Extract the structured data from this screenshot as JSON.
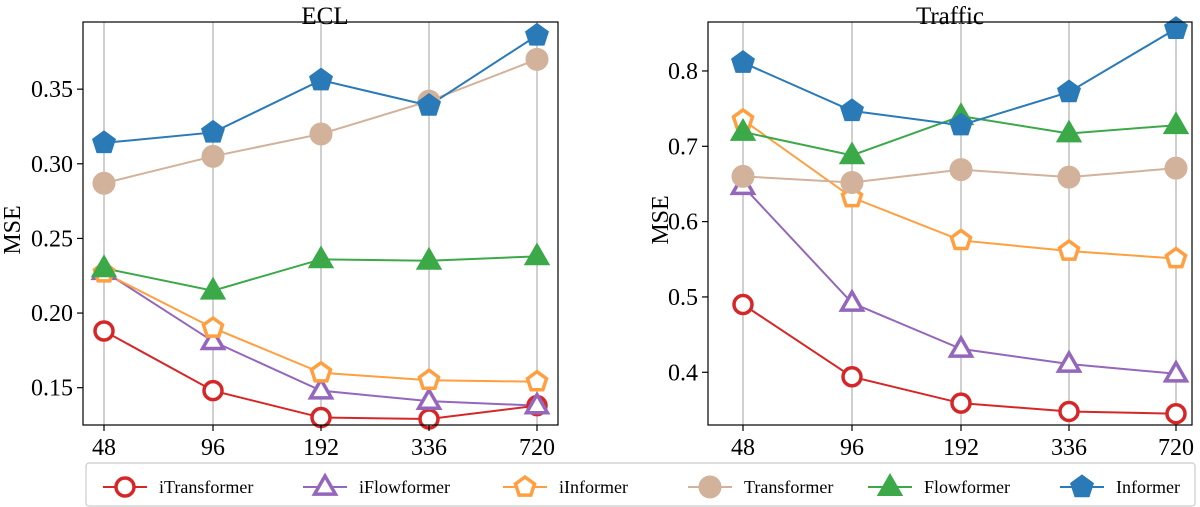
{
  "chart_data": [
    {
      "type": "line",
      "title": "ECL",
      "xlabel": "",
      "ylabel": "MSE",
      "categories": [
        "48",
        "96",
        "192",
        "336",
        "720"
      ],
      "yticks": [
        0.15,
        0.2,
        0.25,
        0.3,
        0.35
      ],
      "ytick_labels": [
        "0.15",
        "0.20",
        "0.25",
        "0.30",
        "0.35"
      ],
      "ylim": [
        0.125,
        0.395
      ],
      "grid": "vertical",
      "series": [
        {
          "name": "iTransformer",
          "values": [
            0.188,
            0.148,
            0.13,
            0.129,
            0.138
          ]
        },
        {
          "name": "iFlowformer",
          "values": [
            0.228,
            0.181,
            0.148,
            0.141,
            0.138
          ]
        },
        {
          "name": "iInformer",
          "values": [
            0.227,
            0.19,
            0.16,
            0.155,
            0.154
          ]
        },
        {
          "name": "Transformer",
          "values": [
            0.287,
            0.305,
            0.32,
            0.342,
            0.37
          ]
        },
        {
          "name": "Flowformer",
          "values": [
            0.23,
            0.215,
            0.236,
            0.235,
            0.238
          ]
        },
        {
          "name": "Informer",
          "values": [
            0.314,
            0.321,
            0.356,
            0.339,
            0.386
          ]
        }
      ]
    },
    {
      "type": "line",
      "title": "Traffic",
      "xlabel": "",
      "ylabel": "MSE",
      "categories": [
        "48",
        "96",
        "192",
        "336",
        "720"
      ],
      "yticks": [
        0.4,
        0.5,
        0.6,
        0.7,
        0.8
      ],
      "ytick_labels": [
        "0.4",
        "0.5",
        "0.6",
        "0.7",
        "0.8"
      ],
      "ylim": [
        0.33,
        0.865
      ],
      "grid": "vertical",
      "series": [
        {
          "name": "iTransformer",
          "values": [
            0.49,
            0.394,
            0.359,
            0.348,
            0.345
          ]
        },
        {
          "name": "iFlowformer",
          "values": [
            0.647,
            0.492,
            0.431,
            0.411,
            0.398
          ]
        },
        {
          "name": "iInformer",
          "values": [
            0.735,
            0.632,
            0.575,
            0.561,
            0.551
          ]
        },
        {
          "name": "Transformer",
          "values": [
            0.66,
            0.652,
            0.669,
            0.659,
            0.671
          ]
        },
        {
          "name": "Flowformer",
          "values": [
            0.719,
            0.688,
            0.74,
            0.717,
            0.728
          ]
        },
        {
          "name": "Informer",
          "values": [
            0.811,
            0.747,
            0.728,
            0.772,
            0.856
          ]
        }
      ]
    }
  ],
  "legend": {
    "placement": "bottom",
    "items": [
      {
        "label": "iTransformer",
        "color": "#d62728",
        "marker": "circle",
        "filled": false
      },
      {
        "label": "iFlowformer",
        "color": "#9467bd",
        "marker": "triangle",
        "filled": false
      },
      {
        "label": "iInformer",
        "color": "#ff9f40",
        "marker": "pentagon",
        "filled": false
      },
      {
        "label": "Transformer",
        "color": "#d2b29a",
        "marker": "circle",
        "filled": true
      },
      {
        "label": "Flowformer",
        "color": "#3ca949",
        "marker": "triangle",
        "filled": true
      },
      {
        "label": "Informer",
        "color": "#2a7ab8",
        "marker": "pentagon",
        "filled": true
      }
    ]
  }
}
